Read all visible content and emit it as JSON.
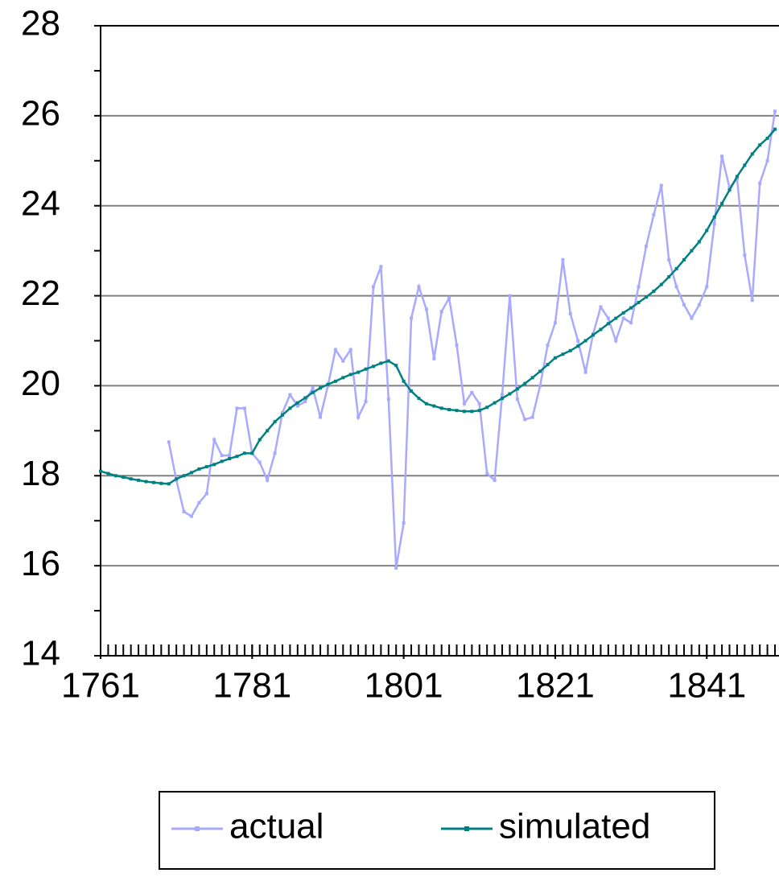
{
  "chart_data": {
    "type": "line",
    "x": [
      1761,
      1762,
      1763,
      1764,
      1765,
      1766,
      1767,
      1768,
      1769,
      1770,
      1771,
      1772,
      1773,
      1774,
      1775,
      1776,
      1777,
      1778,
      1779,
      1780,
      1781,
      1782,
      1783,
      1784,
      1785,
      1786,
      1787,
      1788,
      1789,
      1790,
      1791,
      1792,
      1793,
      1794,
      1795,
      1796,
      1797,
      1798,
      1799,
      1800,
      1801,
      1802,
      1803,
      1804,
      1805,
      1806,
      1807,
      1808,
      1809,
      1810,
      1811,
      1812,
      1813,
      1814,
      1815,
      1816,
      1817,
      1818,
      1819,
      1820,
      1821,
      1822,
      1823,
      1824,
      1825,
      1826,
      1827,
      1828,
      1829,
      1830,
      1831,
      1832,
      1833,
      1834,
      1835,
      1836,
      1837,
      1838,
      1839,
      1840,
      1841,
      1842,
      1843,
      1844,
      1845,
      1846,
      1847,
      1848,
      1849,
      1850
    ],
    "series": [
      {
        "name": "actual",
        "color": "#a9a9ff",
        "values": [
          null,
          null,
          null,
          null,
          null,
          null,
          null,
          null,
          null,
          18.75,
          17.9,
          17.2,
          17.1,
          17.4,
          17.6,
          18.8,
          18.45,
          18.45,
          19.5,
          19.5,
          18.5,
          18.3,
          17.9,
          18.5,
          19.4,
          19.8,
          19.55,
          19.65,
          19.95,
          19.3,
          20.0,
          20.8,
          20.55,
          20.8,
          19.3,
          19.65,
          22.2,
          22.65,
          19.7,
          15.95,
          16.95,
          21.5,
          22.2,
          21.7,
          20.6,
          21.65,
          21.95,
          20.9,
          19.6,
          19.85,
          19.6,
          18.05,
          17.9,
          19.8,
          22.0,
          19.7,
          19.25,
          19.3,
          20.0,
          20.9,
          21.4,
          22.8,
          21.6,
          21.0,
          20.3,
          21.15,
          21.75,
          21.5,
          21.0,
          21.5,
          21.4,
          22.2,
          23.1,
          23.8,
          24.45,
          22.8,
          22.2,
          21.8,
          21.5,
          21.8,
          22.2,
          23.6,
          25.1,
          24.4,
          24.6,
          22.9,
          21.9,
          24.5,
          25.0,
          26.1
        ]
      },
      {
        "name": "simulated",
        "color": "#008080",
        "values": [
          18.1,
          18.05,
          18.0,
          17.97,
          17.93,
          17.9,
          17.87,
          17.85,
          17.83,
          17.82,
          17.93,
          18.0,
          18.07,
          18.15,
          18.2,
          18.25,
          18.32,
          18.38,
          18.43,
          18.5,
          18.5,
          18.8,
          19.0,
          19.2,
          19.35,
          19.5,
          19.62,
          19.73,
          19.85,
          19.95,
          20.03,
          20.1,
          20.18,
          20.25,
          20.3,
          20.37,
          20.43,
          20.5,
          20.55,
          20.45,
          20.1,
          19.88,
          19.72,
          19.6,
          19.55,
          19.5,
          19.47,
          19.45,
          19.43,
          19.43,
          19.45,
          19.52,
          19.62,
          19.72,
          19.82,
          19.93,
          20.05,
          20.18,
          20.32,
          20.47,
          20.62,
          20.7,
          20.78,
          20.88,
          21.0,
          21.13,
          21.25,
          21.38,
          21.5,
          21.62,
          21.73,
          21.85,
          21.97,
          22.1,
          22.25,
          22.42,
          22.6,
          22.8,
          23.0,
          23.2,
          23.45,
          23.75,
          24.05,
          24.35,
          24.65,
          24.9,
          25.15,
          25.35,
          25.5,
          25.7
        ]
      }
    ],
    "xlim": [
      1761,
      1850
    ],
    "xticks": [
      1761,
      1781,
      1801,
      1821,
      1841
    ],
    "ylim": [
      14,
      28
    ],
    "yticks": [
      14,
      16,
      18,
      20,
      22,
      24,
      26,
      28
    ],
    "grid": true
  }
}
